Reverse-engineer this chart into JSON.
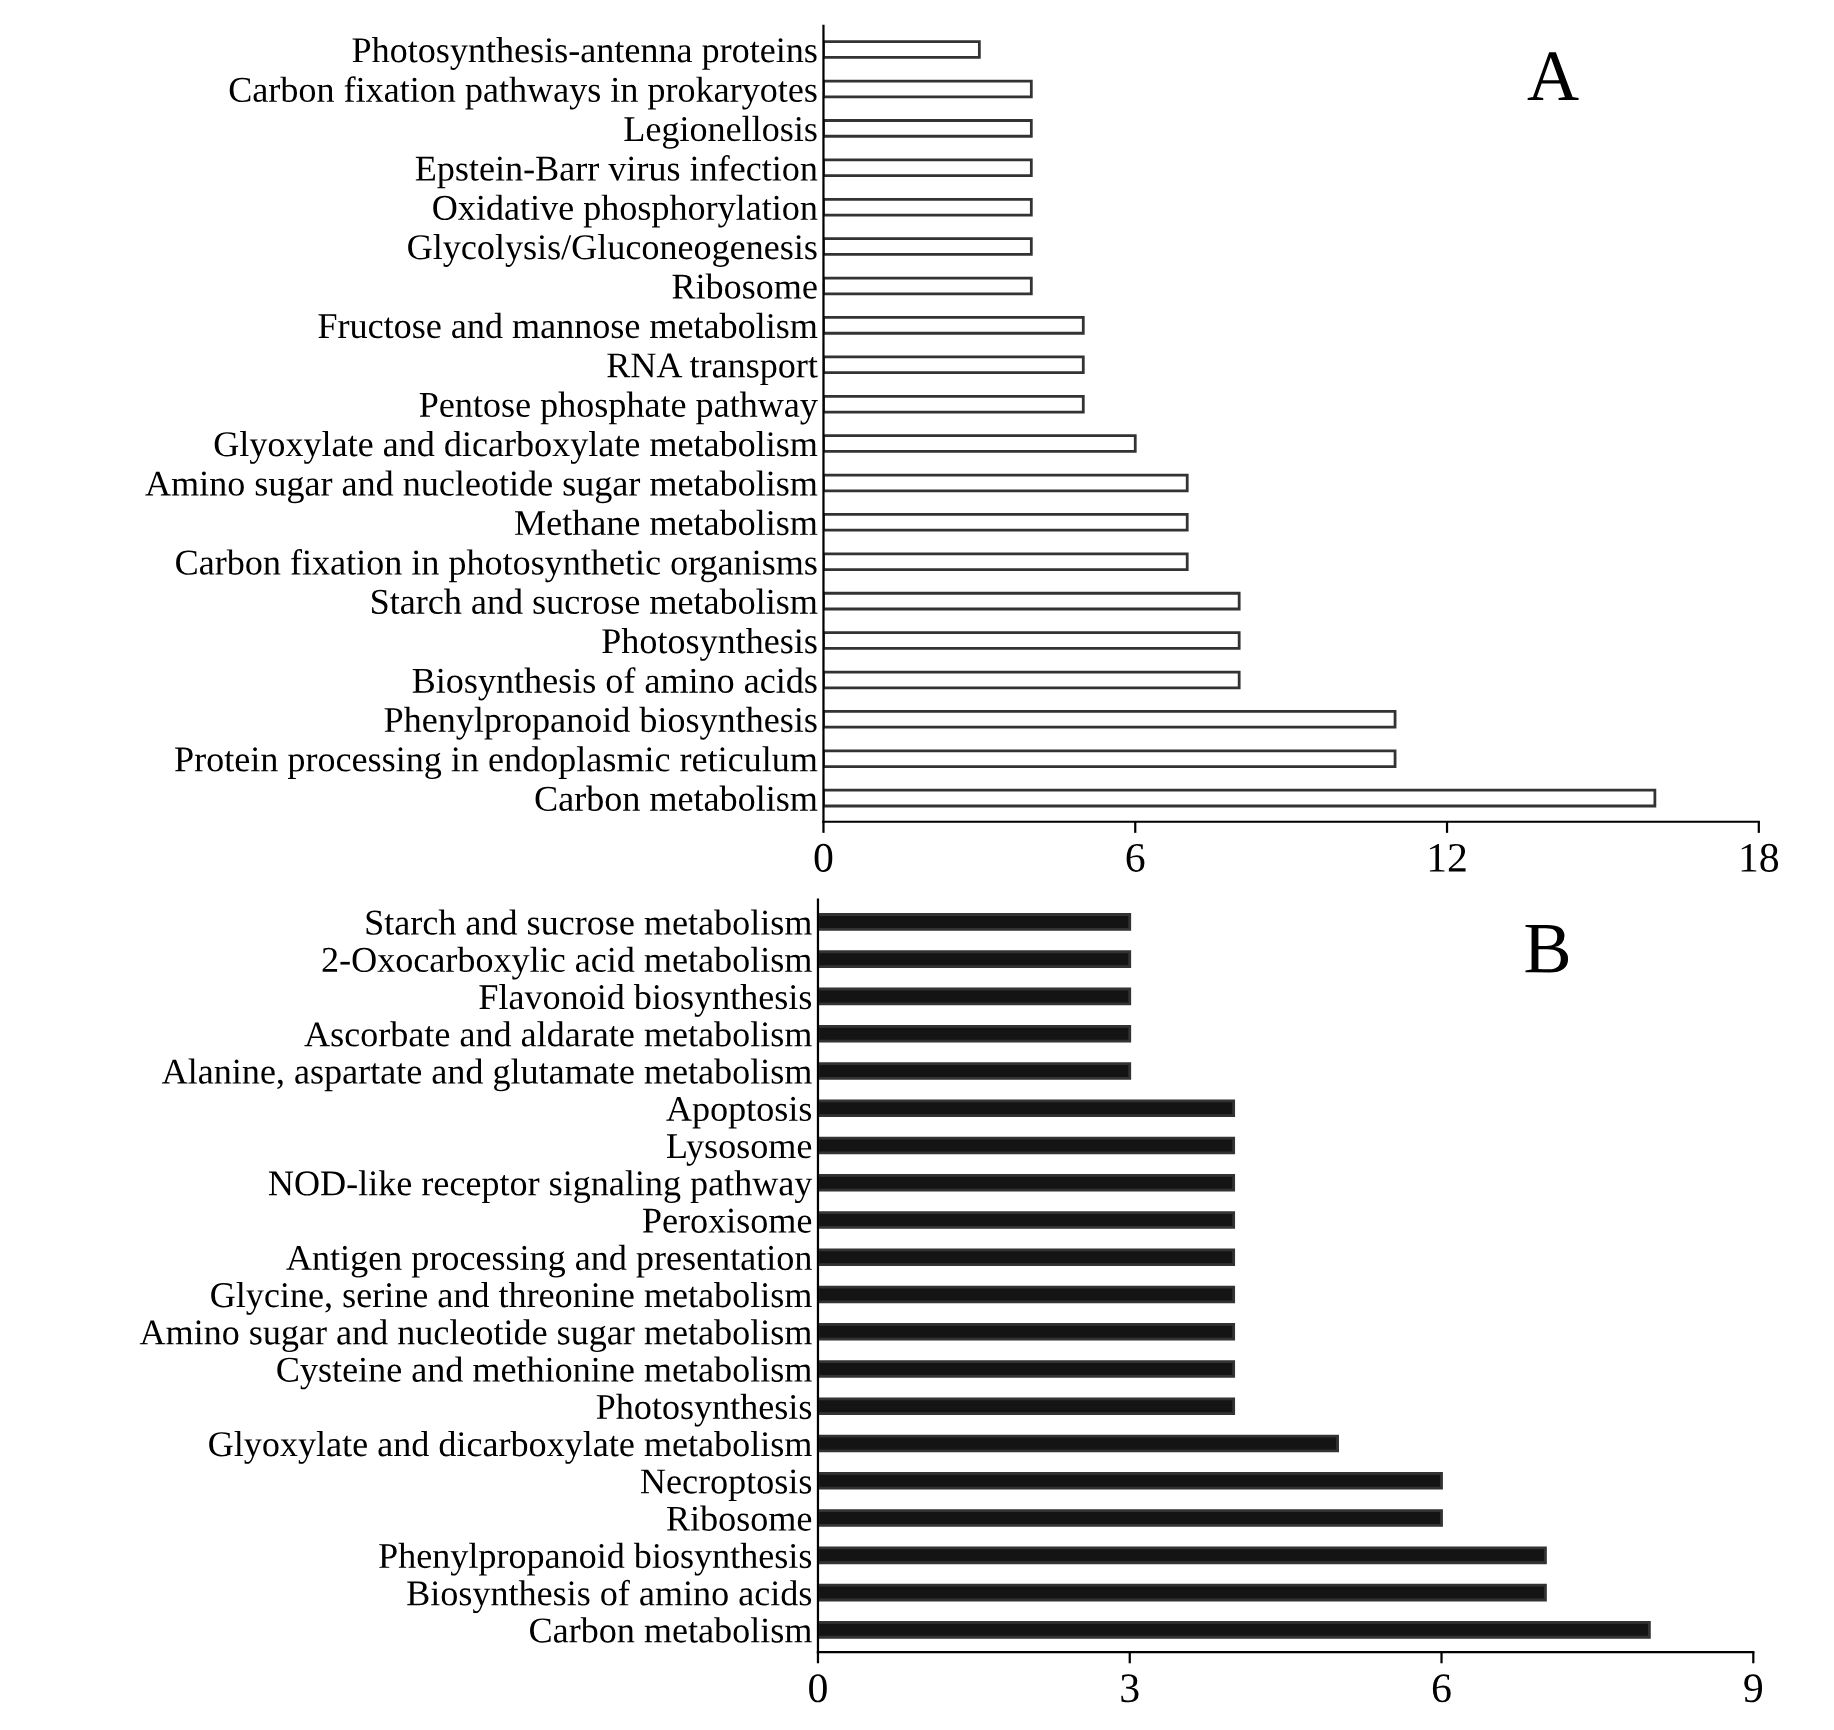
{
  "chart_data": [
    {
      "type": "bar",
      "orientation": "horizontal",
      "categories": [
        "Photosynthesis-antenna proteins",
        "Carbon fixation pathways in prokaryotes",
        "Legionellosis",
        "Epstein-Barr virus infection",
        "Oxidative phosphorylation",
        "Glycolysis/Gluconeogenesis",
        "Ribosome",
        "Fructose and mannose metabolism",
        "RNA transport",
        "Pentose phosphate pathway",
        "Glyoxylate and dicarboxylate metabolism",
        "Amino sugar and nucleotide sugar metabolism",
        "Methane metabolism",
        "Carbon fixation in photosynthetic organisms",
        "Starch and sucrose metabolism",
        "Photosynthesis",
        "Biosynthesis of amino acids",
        "Phenylpropanoid biosynthesis",
        "Protein processing in endoplasmic reticulum",
        "Carbon metabolism"
      ],
      "values": [
        3,
        4,
        4,
        4,
        4,
        4,
        4,
        5,
        5,
        5,
        6,
        7,
        7,
        7,
        8,
        8,
        8,
        11,
        11,
        16
      ],
      "color": "#ffffff",
      "xlim": [
        0,
        18
      ],
      "xticks": [
        0,
        6,
        12,
        18
      ],
      "grid": false,
      "legend": false,
      "annotations": [
        "A"
      ]
    },
    {
      "type": "bar",
      "orientation": "horizontal",
      "categories": [
        "Starch and sucrose metabolism",
        "2-Oxocarboxylic acid metabolism",
        "Flavonoid biosynthesis",
        "Ascorbate and aldarate metabolism",
        "Alanine, aspartate and glutamate metabolism",
        "Apoptosis",
        "Lysosome",
        "NOD-like receptor signaling pathway",
        "Peroxisome",
        "Antigen processing and presentation",
        "Glycine, serine and threonine metabolism",
        "Amino sugar and nucleotide sugar metabolism",
        "Cysteine and methionine metabolism",
        "Photosynthesis",
        "Glyoxylate and dicarboxylate metabolism",
        "Necroptosis",
        "Ribosome",
        "Phenylpropanoid biosynthesis",
        "Biosynthesis of amino acids",
        "Carbon metabolism"
      ],
      "values": [
        3,
        3,
        3,
        3,
        3,
        4,
        4,
        4,
        4,
        4,
        4,
        4,
        4,
        4,
        5,
        6,
        6,
        7,
        7,
        8
      ],
      "color": "#141414",
      "xlim": [
        0,
        9
      ],
      "xticks": [
        0,
        3,
        6,
        9
      ],
      "grid": false,
      "legend": false,
      "annotations": [
        "B"
      ]
    }
  ]
}
